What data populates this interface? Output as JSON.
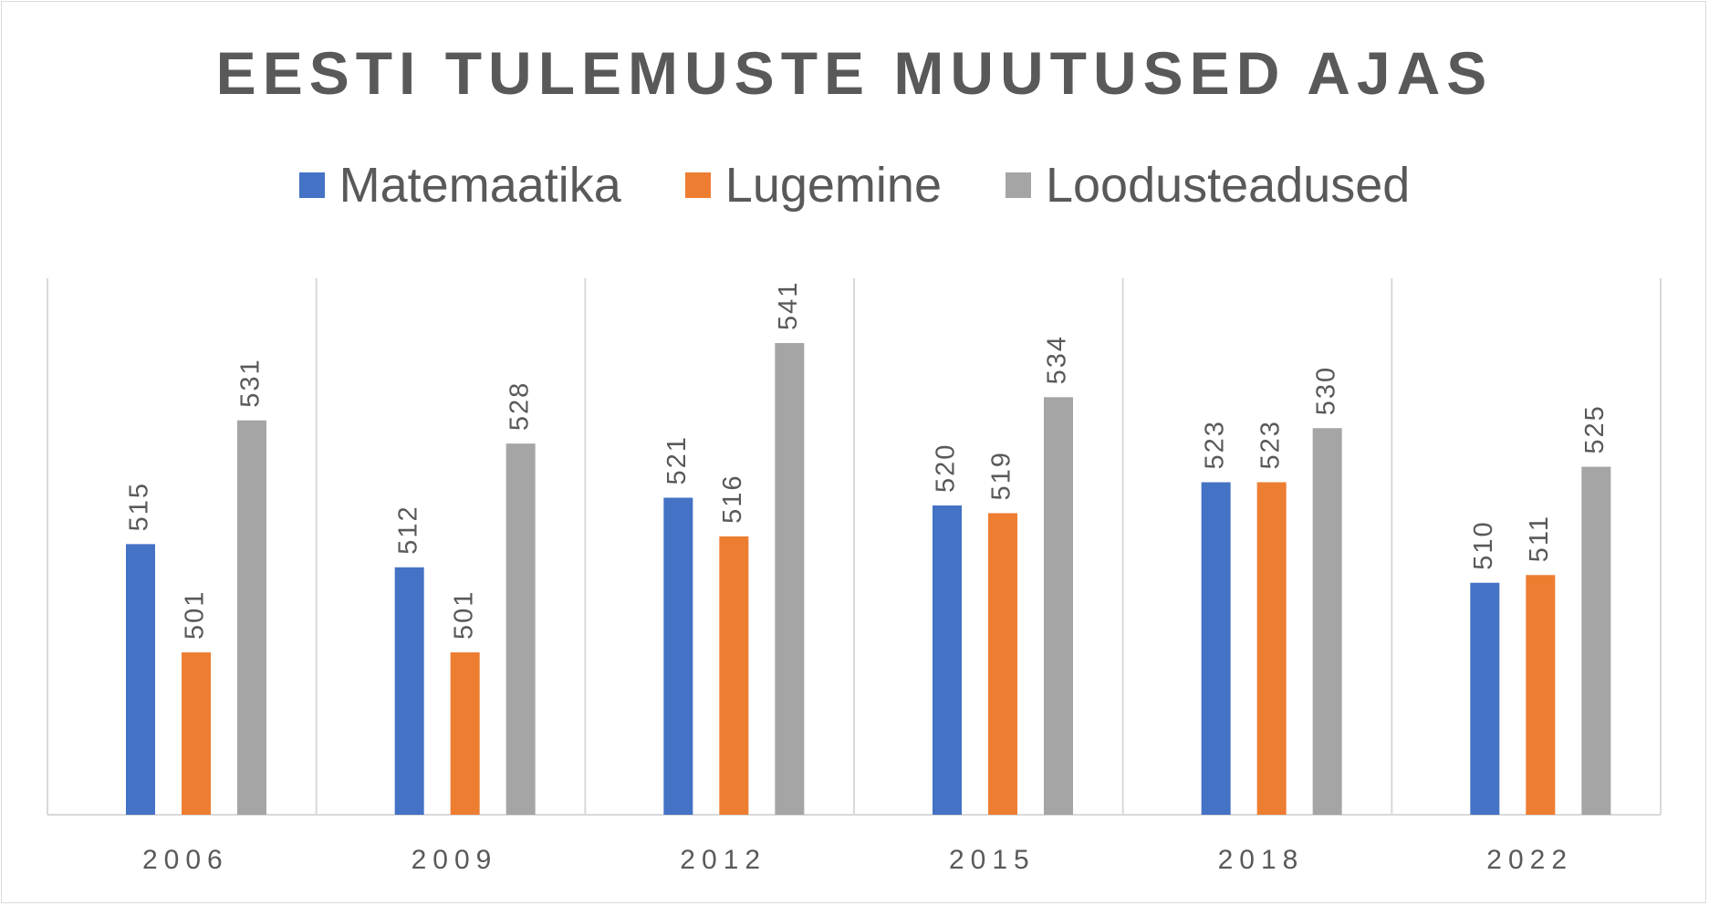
{
  "chart_data": {
    "type": "bar",
    "title": "EESTI TULEMUSTE MUUTUSED AJAS",
    "categories": [
      "2006",
      "2009",
      "2012",
      "2015",
      "2018",
      "2022"
    ],
    "series": [
      {
        "name": "Matemaatika",
        "color": "#4472c4",
        "values": [
          515,
          512,
          521,
          520,
          523,
          510
        ]
      },
      {
        "name": "Lugemine",
        "color": "#ed7d31",
        "values": [
          501,
          501,
          516,
          519,
          523,
          511
        ]
      },
      {
        "name": "Loodusteadused",
        "color": "#a5a5a5",
        "values": [
          531,
          528,
          541,
          534,
          530,
          525
        ]
      }
    ],
    "ylim": [
      480,
      545
    ],
    "grid": "vertical category separators",
    "legend": "top"
  }
}
